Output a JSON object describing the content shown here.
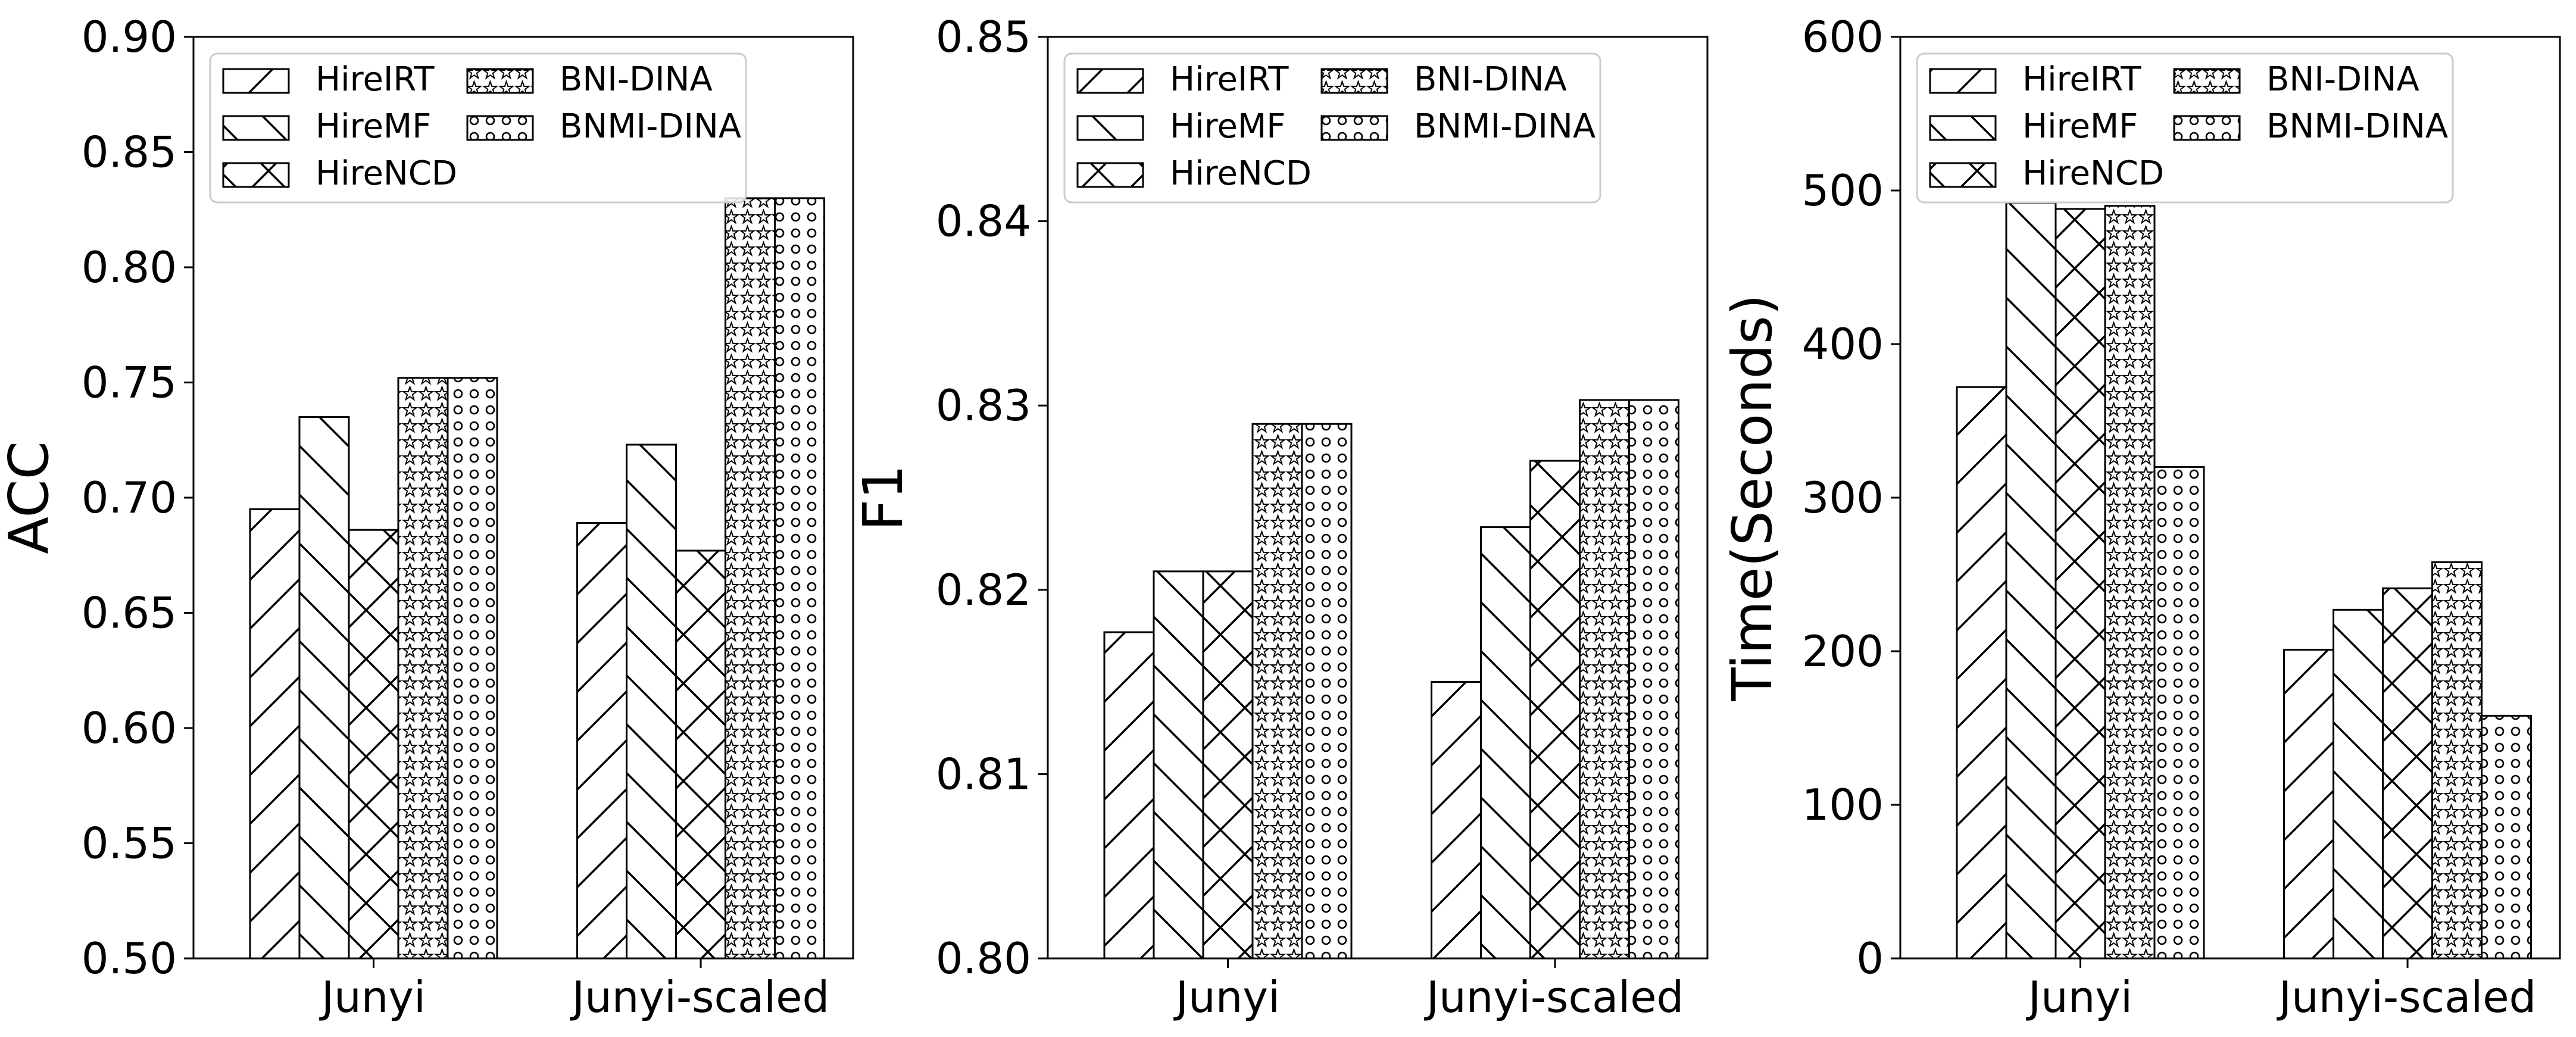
{
  "chart_data": [
    {
      "type": "bar",
      "ylabel": "ACC",
      "ylim": [
        0.5,
        0.9
      ],
      "yticks": [
        "0.50",
        "0.55",
        "0.60",
        "0.65",
        "0.70",
        "0.75",
        "0.80",
        "0.85",
        "0.90"
      ],
      "categories": [
        "Junyi",
        "Junyi-scaled"
      ],
      "series": [
        {
          "name": "HireIRT",
          "pattern": "slash",
          "values": [
            0.695,
            0.689
          ]
        },
        {
          "name": "HireMF",
          "pattern": "backslash",
          "values": [
            0.735,
            0.723
          ]
        },
        {
          "name": "HireNCD",
          "pattern": "cross",
          "values": [
            0.686,
            0.677
          ]
        },
        {
          "name": "BNI-DINA",
          "pattern": "star",
          "values": [
            0.752,
            0.83
          ]
        },
        {
          "name": "BNMI-DINA",
          "pattern": "circle",
          "values": [
            0.752,
            0.83
          ]
        }
      ],
      "legend": "top-left, 2 columns"
    },
    {
      "type": "bar",
      "ylabel": "F1",
      "ylim": [
        0.8,
        0.85
      ],
      "yticks": [
        "0.80",
        "0.81",
        "0.82",
        "0.83",
        "0.84",
        "0.85"
      ],
      "categories": [
        "Junyi",
        "Junyi-scaled"
      ],
      "series": [
        {
          "name": "HireIRT",
          "pattern": "slash",
          "values": [
            0.8177,
            0.815
          ]
        },
        {
          "name": "HireMF",
          "pattern": "backslash",
          "values": [
            0.821,
            0.8234
          ]
        },
        {
          "name": "HireNCD",
          "pattern": "cross",
          "values": [
            0.821,
            0.827
          ]
        },
        {
          "name": "BNI-DINA",
          "pattern": "star",
          "values": [
            0.829,
            0.8303
          ]
        },
        {
          "name": "BNMI-DINA",
          "pattern": "circle",
          "values": [
            0.829,
            0.8303
          ]
        }
      ],
      "legend": "top-left, 2 columns"
    },
    {
      "type": "bar",
      "ylabel": "Time(Seconds)",
      "ylim": [
        0,
        600
      ],
      "yticks": [
        "0",
        "100",
        "200",
        "300",
        "400",
        "500",
        "600"
      ],
      "categories": [
        "Junyi",
        "Junyi-scaled"
      ],
      "series": [
        {
          "name": "HireIRT",
          "pattern": "slash",
          "values": [
            372,
            201
          ]
        },
        {
          "name": "HireMF",
          "pattern": "backslash",
          "values": [
            492,
            227
          ]
        },
        {
          "name": "HireNCD",
          "pattern": "cross",
          "values": [
            488,
            241
          ]
        },
        {
          "name": "BNI-DINA",
          "pattern": "star",
          "values": [
            490,
            258
          ]
        },
        {
          "name": "BNMI-DINA",
          "pattern": "circle",
          "values": [
            320,
            158
          ]
        }
      ],
      "legend": "top-left, 2 columns"
    }
  ]
}
